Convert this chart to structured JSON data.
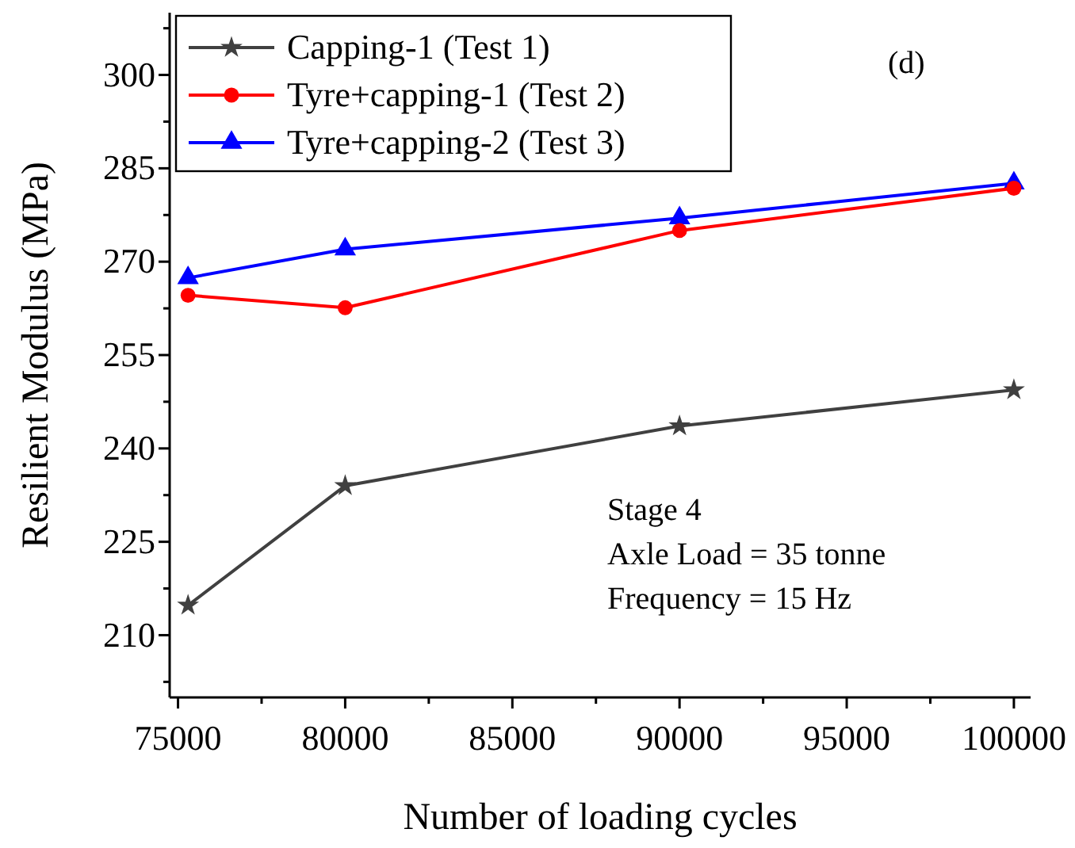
{
  "chart_data": {
    "type": "line",
    "xlabel": "Number of loading cycles",
    "ylabel": "Resilient Modulus (MPa)",
    "x": [
      75300,
      80000,
      90000,
      100000
    ],
    "xlim": [
      74750,
      100500
    ],
    "xticks": [
      75000,
      {
        "value": 77500,
        "label": null
      },
      80000,
      {
        "value": 82500,
        "label": null
      },
      85000,
      {
        "value": 87500,
        "label": null
      },
      90000,
      {
        "value": 92500,
        "label": null
      },
      95000,
      {
        "value": 97500,
        "label": null
      },
      100000
    ],
    "ylim": [
      200,
      310
    ],
    "yticks": [
      {
        "value": 202.5,
        "label": null
      },
      210,
      {
        "value": 217.5,
        "label": null
      },
      225,
      {
        "value": 232.5,
        "label": null
      },
      240,
      {
        "value": 247.5,
        "label": null
      },
      255,
      {
        "value": 262.5,
        "label": null
      },
      270,
      {
        "value": 277.5,
        "label": null
      },
      285,
      {
        "value": 292.5,
        "label": null
      },
      300,
      {
        "value": 307.5,
        "label": null
      }
    ],
    "series": [
      {
        "name": "Capping-1 (Test 1)",
        "color": "#404040",
        "marker": "star",
        "values": [
          214.8,
          234.0,
          243.6,
          249.4
        ]
      },
      {
        "name": "Tyre+capping-1 (Test 2)",
        "color": "#ff0000",
        "marker": "circle",
        "values": [
          264.6,
          262.6,
          275.0,
          281.8
        ]
      },
      {
        "name": "Tyre+capping-2 (Test 3)",
        "color": "#0000ff",
        "marker": "triangle",
        "values": [
          267.4,
          272.0,
          277.0,
          282.6
        ]
      }
    ],
    "legend": "top left",
    "grid": false,
    "line_style": "solid",
    "annotations": [
      "(d)",
      "Stage 4",
      "Axle Load = 35 tonne",
      "Frequency = 15 Hz"
    ]
  }
}
